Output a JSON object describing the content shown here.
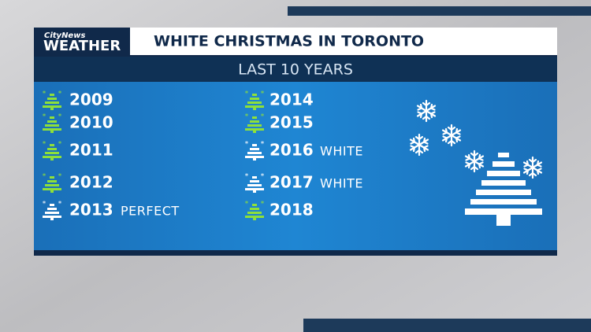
{
  "header": {
    "brand": "CityNews",
    "logo": "WEATHER",
    "title": "WHITE CHRISTMAS IN TORONTO"
  },
  "subtitle": "LAST 10 YEARS",
  "years": [
    {
      "year": "2009",
      "color": "#8ee03a"
    },
    {
      "year": "2010",
      "color": "#8ee03a"
    },
    {
      "year": "2011",
      "color": "#8ee03a"
    },
    {
      "year": "2012",
      "color": "#8ee03a"
    },
    {
      "year": "2013",
      "note": "PERFECT",
      "color": "#ffffff"
    },
    {
      "year": "2014",
      "color": "#8ee03a"
    },
    {
      "year": "2015",
      "color": "#8ee03a"
    },
    {
      "year": "2016",
      "note": "WHITE",
      "color": "#ffffff"
    },
    {
      "year": "2017",
      "note": "WHITE",
      "color": "#ffffff"
    },
    {
      "year": "2018",
      "color": "#8ee03a"
    }
  ]
}
